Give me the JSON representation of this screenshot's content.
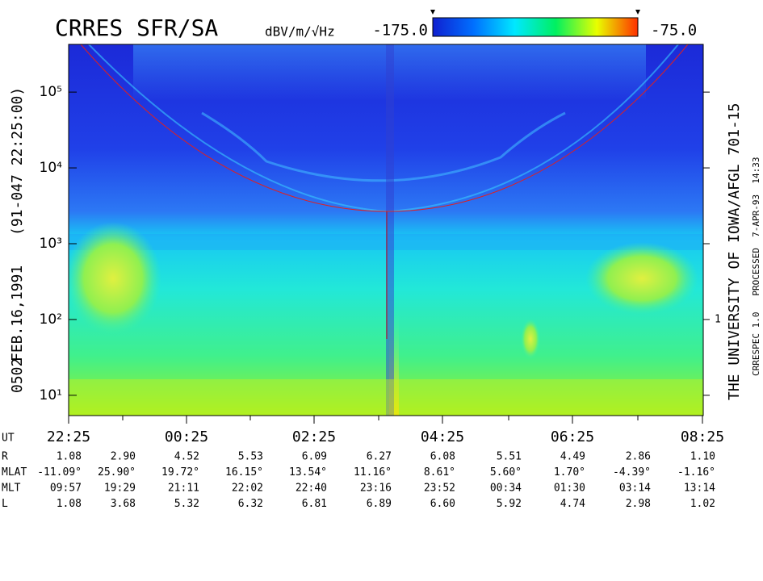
{
  "chart_data": {
    "type": "spectrogram",
    "title": "CRRES SFR/SA",
    "colorbar": {
      "label": "dBV/m/√Hz",
      "ticks": [
        {
          "value": -175,
          "label": "-175.0"
        },
        {
          "value": -75,
          "label": "-75.0"
        }
      ],
      "colors": [
        "#1020d0",
        "#0070ff",
        "#00e8ff",
        "#00f060",
        "#e8ff00",
        "#ff3000"
      ]
    },
    "left_labels": [
      "0502",
      "FEB.16,1991",
      "(91-047 22:25:00)"
    ],
    "right_labels": [
      "THE UNIVERSITY OF IOWA/AFGL 701-15",
      "CRRESPEC 1.0   PROCESSED  7-APR-93  14:33"
    ],
    "y2_tick_label": "1",
    "log_y": true,
    "ylim": [
      5.4,
      426000
    ],
    "yticks": [
      {
        "value": 10,
        "label": "10¹"
      },
      {
        "value": 100,
        "label": "10²"
      },
      {
        "value": 1000,
        "label": "10³"
      },
      {
        "value": 10000,
        "label": "10⁴"
      },
      {
        "value": 100000,
        "label": "10⁵"
      }
    ],
    "x_label": "UT",
    "categories": [
      "22:25",
      null,
      "00:25",
      null,
      "02:25",
      null,
      "04:25",
      null,
      "06:25",
      null,
      "08:25"
    ],
    "ephemeris": [
      {
        "name": "R",
        "values": [
          1.08,
          2.9,
          4.52,
          5.53,
          6.09,
          6.27,
          6.08,
          5.51,
          4.49,
          2.86,
          1.1
        ],
        "value_labels": [
          "1.08",
          "2.90",
          "4.52",
          "5.53",
          "6.09",
          "6.27",
          "6.08",
          "5.51",
          "4.49",
          "2.86",
          "1.10"
        ]
      },
      {
        "name": "MLAT",
        "values": [
          -11.09,
          25.9,
          19.72,
          16.15,
          13.54,
          11.16,
          8.61,
          5.6,
          1.7,
          -4.39,
          -1.16
        ],
        "value_labels": [
          "-11.09°",
          "25.90°",
          "19.72°",
          "16.15°",
          "13.54°",
          "11.16°",
          "8.61°",
          "5.60°",
          "1.70°",
          "-4.39°",
          "-1.16°"
        ]
      },
      {
        "name": "MLT",
        "labels": [
          "09:57",
          "19:29",
          "21:11",
          "22:02",
          "22:40",
          "23:16",
          "23:52",
          "00:34",
          "01:30",
          "03:14",
          "13:14"
        ]
      },
      {
        "name": "L",
        "values": [
          1.08,
          3.68,
          5.32,
          6.32,
          6.81,
          6.89,
          6.6,
          5.92,
          4.74,
          2.98,
          1.02
        ],
        "value_labels": [
          "1.08",
          "3.68",
          "5.32",
          "6.32",
          "6.81",
          "6.89",
          "6.60",
          "5.92",
          "4.74",
          "2.98",
          "1.02"
        ]
      }
    ]
  }
}
